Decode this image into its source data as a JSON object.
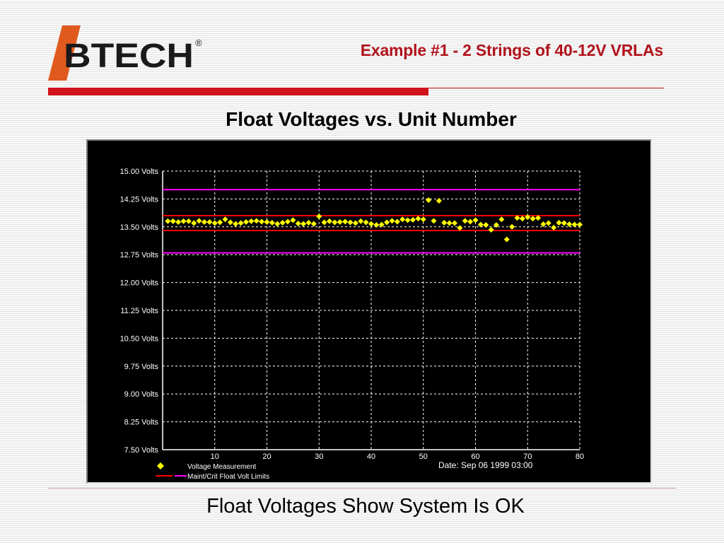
{
  "header": {
    "logo_text": "BTECH",
    "logo_mark": "®",
    "title": "Example #1 - 2 Strings of 40-12V VRLAs"
  },
  "slide_title": "Float Voltages vs. Unit Number",
  "footer_text": "Float Voltages Show System Is OK",
  "colors": {
    "brand_red": "#d0121b",
    "logo_orange": "#e05a1e",
    "point_yellow": "#ffff00",
    "maint_limit_red": "#ff0000",
    "crit_limit_magenta": "#ff00ff"
  },
  "chart_data": {
    "type": "scatter",
    "x": [
      1,
      2,
      3,
      4,
      5,
      6,
      7,
      8,
      9,
      10,
      11,
      12,
      13,
      14,
      15,
      16,
      17,
      18,
      19,
      20,
      21,
      22,
      23,
      24,
      25,
      26,
      27,
      28,
      29,
      30,
      31,
      32,
      33,
      34,
      35,
      36,
      37,
      38,
      39,
      40,
      41,
      42,
      43,
      44,
      45,
      46,
      47,
      48,
      49,
      50,
      51,
      52,
      53,
      54,
      55,
      56,
      57,
      58,
      59,
      60,
      61,
      62,
      63,
      64,
      65,
      66,
      67,
      68,
      69,
      70,
      71,
      72,
      73,
      74,
      75,
      76,
      77,
      78,
      79,
      80
    ],
    "series": [
      {
        "name": "Voltage Measurement",
        "marker": "diamond",
        "values": [
          13.65,
          13.65,
          13.63,
          13.65,
          13.65,
          13.6,
          13.66,
          13.63,
          13.63,
          13.6,
          13.62,
          13.7,
          13.62,
          13.58,
          13.6,
          13.63,
          13.65,
          13.66,
          13.64,
          13.63,
          13.61,
          13.58,
          13.61,
          13.64,
          13.68,
          13.59,
          13.58,
          13.61,
          13.58,
          13.78,
          13.62,
          13.65,
          13.62,
          13.63,
          13.64,
          13.62,
          13.6,
          13.65,
          13.62,
          13.58,
          13.55,
          13.56,
          13.62,
          13.66,
          13.64,
          13.7,
          13.68,
          13.69,
          13.72,
          13.7,
          14.22,
          13.66,
          14.2,
          13.61,
          13.6,
          13.6,
          13.47,
          13.66,
          13.64,
          13.68,
          13.56,
          13.55,
          13.42,
          13.55,
          13.7,
          13.16,
          13.5,
          13.74,
          13.72,
          13.76,
          13.72,
          13.74,
          13.57,
          13.6,
          13.48,
          13.61,
          13.6,
          13.57,
          13.56,
          13.56
        ]
      }
    ],
    "limits": [
      {
        "name": "Maint/Crit Float Volt Limits",
        "kind": "maint",
        "values": [
          13.4,
          13.8
        ]
      },
      {
        "name": "Maint/Crit Float Volt Limits",
        "kind": "crit",
        "values": [
          12.8,
          14.5
        ]
      }
    ],
    "legend": {
      "voltage_label": "Voltage Measurement",
      "limits_label": "Maint/Crit Float Volt Limits"
    },
    "date_label": "Date: Sep 06 1999  03:00",
    "xlim": [
      0,
      80
    ],
    "ylim": [
      7.5,
      15.0
    ],
    "x_ticks": [
      10,
      20,
      30,
      40,
      50,
      60,
      70,
      80
    ],
    "x_tick_labels": [
      "10",
      "20",
      "30",
      "40",
      "50",
      "60",
      "70",
      "80"
    ],
    "y_ticks": [
      7.5,
      8.25,
      9.0,
      9.75,
      10.5,
      11.25,
      12.0,
      12.75,
      13.5,
      14.25,
      15.0
    ],
    "y_tick_labels": [
      "7.50 Volts",
      "8.25 Volts",
      "9.00 Volts",
      "9.75 Volts",
      "10.50 Volts",
      "11.25 Volts",
      "12.00 Volts",
      "12.75 Volts",
      "13.50 Volts",
      "14.25 Volts",
      "15.00 Volts"
    ],
    "grid": true,
    "legend_position": "bottom-left"
  }
}
